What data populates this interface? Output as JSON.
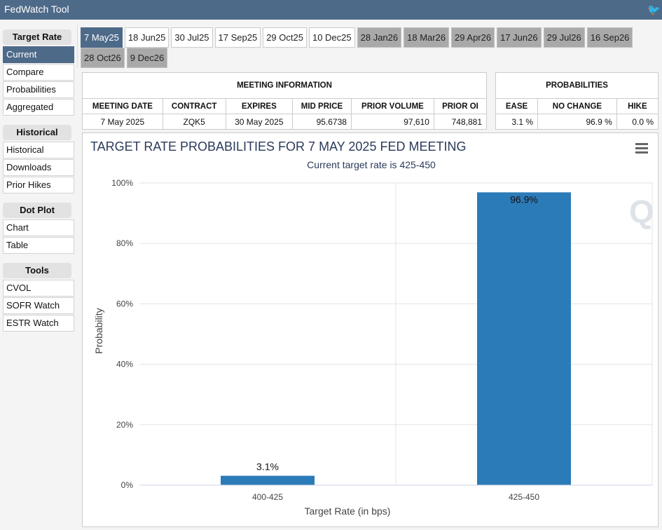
{
  "app": {
    "title": "FedWatch Tool",
    "share_icon": "twitter-bird-icon"
  },
  "sidebar": {
    "groups": [
      {
        "heading": "Target Rate",
        "items": [
          "Current",
          "Compare",
          "Probabilities",
          "Aggregated"
        ],
        "active": "Current"
      },
      {
        "heading": "Historical",
        "items": [
          "Historical",
          "Downloads",
          "Prior Hikes"
        ]
      },
      {
        "heading": "Dot Plot",
        "items": [
          "Chart",
          "Table"
        ]
      },
      {
        "heading": "Tools",
        "items": [
          "CVOL",
          "SOFR Watch",
          "ESTR Watch"
        ]
      }
    ]
  },
  "meeting_tabs": [
    {
      "label": "7 May25",
      "state": "active"
    },
    {
      "label": "18 Jun25",
      "state": "normal"
    },
    {
      "label": "30 Jul25",
      "state": "normal"
    },
    {
      "label": "17 Sep25",
      "state": "normal"
    },
    {
      "label": "29 Oct25",
      "state": "normal"
    },
    {
      "label": "10 Dec25",
      "state": "normal"
    },
    {
      "label": "28 Jan26",
      "state": "grey"
    },
    {
      "label": "18 Mar26",
      "state": "grey"
    },
    {
      "label": "29 Apr26",
      "state": "grey"
    },
    {
      "label": "17 Jun26",
      "state": "grey"
    },
    {
      "label": "29 Jul26",
      "state": "grey"
    },
    {
      "label": "16 Sep26",
      "state": "grey"
    },
    {
      "label": "28 Oct26",
      "state": "grey"
    },
    {
      "label": "9 Dec26",
      "state": "grey"
    }
  ],
  "meeting_info": {
    "title": "MEETING INFORMATION",
    "headers": [
      "MEETING DATE",
      "CONTRACT",
      "EXPIRES",
      "MID PRICE",
      "PRIOR VOLUME",
      "PRIOR OI"
    ],
    "values": [
      "7 May 2025",
      "ZQK5",
      "30 May 2025",
      "95.6738",
      "97,610",
      "748,881"
    ]
  },
  "probabilities": {
    "title": "PROBABILITIES",
    "headers": [
      "EASE",
      "NO CHANGE",
      "HIKE"
    ],
    "values": [
      "3.1 %",
      "96.9 %",
      "0.0 %"
    ]
  },
  "chart_data": {
    "type": "bar",
    "title": "TARGET RATE PROBABILITIES FOR 7 MAY 2025 FED MEETING",
    "subtitle": "Current target rate is 425-450",
    "xlabel": "Target Rate (in bps)",
    "ylabel": "Probability",
    "categories": [
      "400-425",
      "425-450"
    ],
    "values": [
      3.1,
      96.9
    ],
    "data_labels": [
      "3.1%",
      "96.9%"
    ],
    "ylim": [
      0,
      100
    ],
    "yticks": [
      "0%",
      "20%",
      "40%",
      "60%",
      "80%",
      "100%"
    ],
    "grid": true,
    "bar_color": "#2b7bb9",
    "menu_icon": "hamburger-menu-icon"
  }
}
